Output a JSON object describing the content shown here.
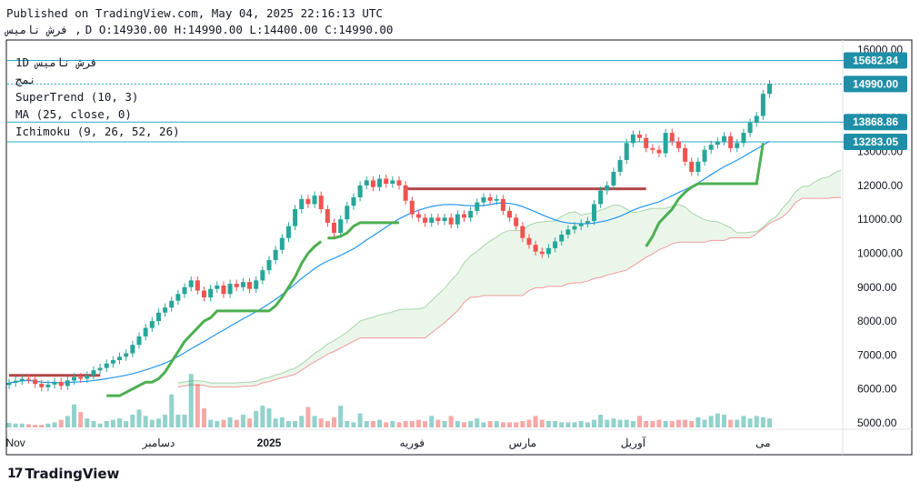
{
  "header": {
    "published": "Published on TradingView.com, May 04, 2025 22:16:13 UTC",
    "symbol": "فرش  ناميس ,",
    "ohlc": "D O:14930.00 H:14990.00 L:14400.00 C:14990.00"
  },
  "legend": {
    "symbol_line": "1D    فرش  ناميس",
    "sub_line": "نمج",
    "supertrend": "SuperTrend (10, 3)",
    "ma": "MA (25, close, 0)",
    "ichimoku": "Ichimoku (9, 26, 52, 26)"
  },
  "footer": {
    "logo_text": "TradingView",
    "logo_mark": "17"
  },
  "colors": {
    "up": "#26a69a",
    "down": "#ef5350",
    "supertrend_up": "#4caf50",
    "supertrend_down": "#b3474a",
    "ma": "#2196f3",
    "cloud": "#e6f4e6",
    "span_a": "#a5d6a7",
    "span_b": "#ef9a9a",
    "hline": "#2aa8c8",
    "price_label": "#1f8fa8"
  },
  "chart_data": {
    "type": "candlestick",
    "timeframe": "1D",
    "y_ticks": [
      5000,
      6000,
      7000,
      8000,
      9000,
      10000,
      11000,
      12000,
      13000,
      14000,
      15000,
      16000
    ],
    "y_tick_labels": [
      "5000.00",
      "6000.00",
      "7000.00",
      "8000.00",
      "9000.00",
      "10000.00",
      "11000.00",
      "12000.00",
      "13000.00",
      "14000.00",
      "15000.00",
      "16000.00"
    ],
    "x_labels": [
      {
        "label": "Nov",
        "bar": 1,
        "bold": false
      },
      {
        "label": "دسامبر",
        "bar": 23,
        "bold": false
      },
      {
        "label": "2025",
        "bar": 40,
        "bold": true
      },
      {
        "label": "فوريه",
        "bar": 62,
        "bold": false
      },
      {
        "label": "مارس",
        "bar": 79,
        "bold": false
      },
      {
        "label": "آوريل",
        "bar": 96,
        "bold": false
      },
      {
        "label": "مى",
        "bar": 116,
        "bold": false
      }
    ],
    "horizontal_levels": [
      {
        "value": 15682.84,
        "label": "15682.84",
        "style": "solid"
      },
      {
        "value": 14990.0,
        "label": "14990.00",
        "style": "dotted"
      },
      {
        "value": 13868.86,
        "label": "13868.86",
        "style": "solid"
      },
      {
        "value": 13283.05,
        "label": "13283.05",
        "style": "solid"
      }
    ],
    "close": [
      6180,
      6240,
      6300,
      6280,
      6150,
      6050,
      6130,
      6210,
      6090,
      6250,
      6350,
      6300,
      6400,
      6550,
      6620,
      6750,
      6850,
      6950,
      7050,
      7300,
      7550,
      7800,
      8000,
      8250,
      8400,
      8600,
      8800,
      9000,
      9200,
      8900,
      8700,
      8950,
      9050,
      8800,
      9100,
      9000,
      9150,
      8950,
      9200,
      9500,
      9800,
      10100,
      10450,
      10800,
      11300,
      11600,
      11450,
      11700,
      11300,
      10900,
      10600,
      11000,
      11400,
      11650,
      12000,
      12150,
      11950,
      12200,
      12050,
      12150,
      12000,
      11550,
      11150,
      11050,
      10900,
      11050,
      10950,
      11050,
      10850,
      11150,
      11050,
      11250,
      11500,
      11650,
      11550,
      11600,
      11250,
      11050,
      10800,
      10450,
      10250,
      10050,
      9980,
      10150,
      10350,
      10550,
      10700,
      10800,
      10880,
      10950,
      11450,
      11850,
      12000,
      12400,
      12750,
      13250,
      13500,
      13400,
      13100,
      13050,
      12950,
      13550,
      13300,
      13100,
      12700,
      12400,
      12700,
      13050,
      13200,
      13300,
      13450,
      13100,
      13250,
      13550,
      13850,
      14050,
      14700,
      14990
    ],
    "volume_scale": "relative",
    "volumes": [
      0.35,
      0.3,
      0.3,
      0.25,
      0.2,
      0.2,
      0.3,
      0.4,
      0.6,
      0.9,
      1.8,
      1.2,
      0.7,
      0.5,
      0.3,
      0.5,
      0.6,
      0.7,
      0.5,
      1.0,
      1.4,
      0.9,
      0.6,
      0.7,
      1.0,
      2.6,
      1.0,
      1.0,
      4.2,
      3.4,
      1.5,
      0.6,
      0.5,
      0.6,
      0.8,
      0.6,
      1.0,
      0.7,
      1.3,
      1.7,
      1.5,
      0.7,
      0.8,
      0.5,
      0.5,
      0.9,
      1.6,
      0.9,
      0.7,
      0.5,
      0.8,
      1.7,
      0.5,
      0.4,
      1.1,
      0.5,
      0.5,
      0.6,
      0.4,
      0.5,
      0.4,
      0.5,
      0.5,
      0.6,
      0.5,
      0.9,
      0.6,
      0.5,
      0.9,
      0.5,
      0.4,
      0.5,
      0.7,
      0.4,
      0.5,
      0.5,
      0.4,
      0.4,
      0.4,
      0.5,
      0.6,
      0.9,
      0.6,
      0.5,
      0.5,
      0.4,
      0.4,
      0.4,
      0.5,
      0.4,
      0.6,
      1.0,
      0.6,
      0.7,
      0.6,
      0.6,
      0.5,
      0.9,
      0.5,
      0.5,
      0.6,
      0.5,
      0.5,
      0.6,
      0.6,
      0.5,
      0.8,
      0.6,
      0.9,
      1.1,
      1.0,
      0.6,
      0.6,
      0.9,
      0.7,
      0.9,
      0.8,
      0.7
    ],
    "supertrend": [
      {
        "from": 0,
        "to": 14,
        "value": 6400,
        "trend": "down"
      },
      {
        "from": 15,
        "to": 48,
        "trend": "up",
        "points": [
          5800,
          5800,
          5800,
          5900,
          6000,
          6100,
          6200,
          6200,
          6300,
          6500,
          6800,
          7100,
          7400,
          7600,
          7800,
          8000,
          8100,
          8300,
          8300,
          8300,
          8300,
          8300,
          8300,
          8300,
          8300,
          8300,
          8450,
          8700,
          9000,
          9300,
          9700,
          10000,
          10200,
          10350
        ]
      },
      {
        "from": 49,
        "to": 60,
        "trend": "up2",
        "points": [
          10450,
          10450,
          10500,
          10600,
          10800,
          10900,
          10900,
          10900,
          10900,
          10900,
          10900,
          10900
        ]
      },
      {
        "from": 61,
        "to": 98,
        "value": 11900,
        "trend": "down"
      },
      {
        "from": 98,
        "to": 116,
        "trend": "up",
        "points": [
          10200,
          10500,
          10900,
          11100,
          11300,
          11600,
          11800,
          11950,
          12050,
          12050,
          12050,
          12050,
          12050,
          12050,
          12050,
          12050,
          12050,
          12050,
          13250
        ]
      }
    ]
  }
}
